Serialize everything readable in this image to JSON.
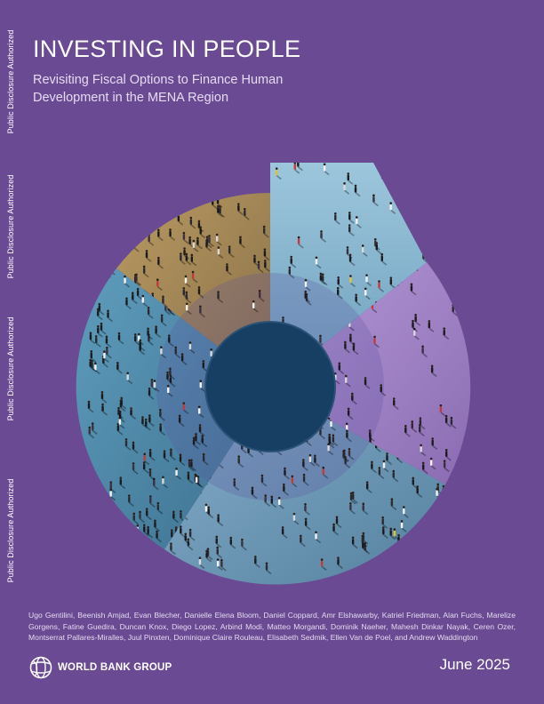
{
  "side_labels": [
    "Public Disclosure Authorized",
    "Public Disclosure Authorized",
    "Public Disclosure Authorized",
    "Public Disclosure Authorized"
  ],
  "title": "INVESTING IN PEOPLE",
  "subtitle": "Revisiting Fiscal Options to Finance Human Development in the MENA Region",
  "authors": "Ugo Gentilini, Beenish Amjad, Evan Blecher, Danielle Elena Bloom, Daniel Coppard, Amr Elshawarby, Katriel Friedman, Alan Fuchs, Marelize Gorgens, Fatine Guedira, Duncan Knox, Diego Lopez, Arbind Modi, Matteo Morgandi, Dominik Naeher, Mahesh Dinkar Nayak, Ceren Ozer, Montserrat Pallares-Miralles, Juul Pinxten, Dominique Claire Rouleau, Elisabeth Sedmik, Ellen Van de Poel, and Andrew Waddington",
  "publisher": "WORLD BANK GROUP",
  "date": "June 2025",
  "colors": {
    "background": "#6a4a93",
    "ring": "#4d3d8e",
    "center": "#173e63",
    "gold": "#a88a5a",
    "teal": "#4b8bab",
    "lilac": "#a389c6",
    "steel": "#6e99b8",
    "sky": "#87b5cf"
  }
}
